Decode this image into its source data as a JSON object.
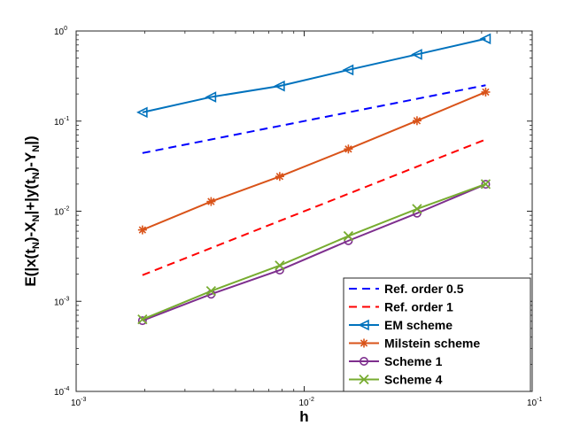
{
  "chart_data": {
    "type": "line",
    "xscale": "log",
    "yscale": "log",
    "xlim": [
      0.001,
      0.1
    ],
    "ylim": [
      0.0001,
      1
    ],
    "xlabel": "h",
    "ylabel_parts": [
      "E(|x(t",
      "N",
      ")-X",
      "N",
      "|+|y(t",
      "N",
      ")-Y",
      "N",
      "|)"
    ],
    "x_ticks": [
      {
        "value": 0.001,
        "base": "10",
        "exp": "-3"
      },
      {
        "value": 0.01,
        "base": "10",
        "exp": "-2"
      },
      {
        "value": 0.1,
        "base": "10",
        "exp": "-1"
      }
    ],
    "y_ticks": [
      {
        "value": 0.0001,
        "base": "10",
        "exp": "-4"
      },
      {
        "value": 0.001,
        "base": "10",
        "exp": "-3"
      },
      {
        "value": 0.01,
        "base": "10",
        "exp": "-2"
      },
      {
        "value": 0.1,
        "base": "10",
        "exp": "-1"
      },
      {
        "value": 1,
        "base": "10",
        "exp": "0"
      }
    ],
    "grid": false,
    "legend_position": "bottom-right",
    "x": [
      0.001953125,
      0.00390625,
      0.0078125,
      0.015625,
      0.03125,
      0.0625
    ],
    "series": [
      {
        "name": "Ref. order 0.5",
        "color": "#0000ff",
        "style": "dashed",
        "marker": "none",
        "values": [
          0.0442,
          0.0625,
          0.0884,
          0.125,
          0.1768,
          0.25
        ]
      },
      {
        "name": "Ref. order 1",
        "color": "#ff0000",
        "style": "dashed",
        "marker": "none",
        "values": [
          0.00195,
          0.0039,
          0.0078,
          0.0156,
          0.03125,
          0.0625
        ]
      },
      {
        "name": "EM scheme",
        "color": "#0072bd",
        "style": "solid",
        "marker": "triangle-left",
        "values": [
          0.125,
          0.185,
          0.245,
          0.37,
          0.55,
          0.82
        ]
      },
      {
        "name": "Milstein scheme",
        "color": "#d95319",
        "style": "solid",
        "marker": "asterisk",
        "values": [
          0.0062,
          0.0128,
          0.0243,
          0.049,
          0.101,
          0.21
        ]
      },
      {
        "name": "Scheme 1",
        "color": "#7e2f8e",
        "style": "solid",
        "marker": "circle",
        "values": [
          0.00061,
          0.0012,
          0.00222,
          0.0047,
          0.0095,
          0.0199
        ]
      },
      {
        "name": "Scheme 4",
        "color": "#77ac30",
        "style": "solid",
        "marker": "x",
        "values": [
          0.00063,
          0.0013,
          0.0025,
          0.0053,
          0.0106,
          0.02
        ]
      }
    ]
  }
}
